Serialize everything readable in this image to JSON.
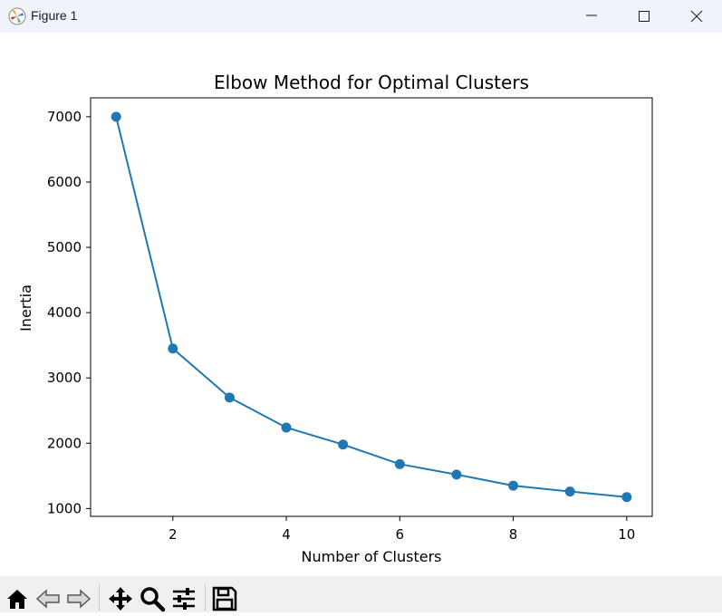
{
  "window": {
    "title": "Figure 1"
  },
  "toolbar": {
    "buttons": [
      "home-icon",
      "back-icon",
      "forward-icon",
      "pan-icon",
      "zoom-icon",
      "configure-subplots-icon",
      "save-icon"
    ]
  },
  "colors": {
    "line": "#1f77b4",
    "titlebar": "#f0f3f9",
    "toolbar": "#f0f0f0"
  },
  "chart_data": {
    "type": "line",
    "title": "Elbow Method for Optimal Clusters",
    "xlabel": "Number of Clusters",
    "ylabel": "Inertia",
    "x": [
      1,
      2,
      3,
      4,
      5,
      6,
      7,
      8,
      9,
      10
    ],
    "y": [
      7000,
      3450,
      2700,
      2240,
      1980,
      1680,
      1520,
      1350,
      1260,
      1175
    ],
    "marker": "circle",
    "xlim": [
      0.55,
      10.45
    ],
    "ylim": [
      880,
      7290
    ],
    "xticks": [
      2,
      4,
      6,
      8,
      10
    ],
    "yticks": [
      1000,
      2000,
      3000,
      4000,
      5000,
      6000,
      7000
    ],
    "grid": false
  }
}
